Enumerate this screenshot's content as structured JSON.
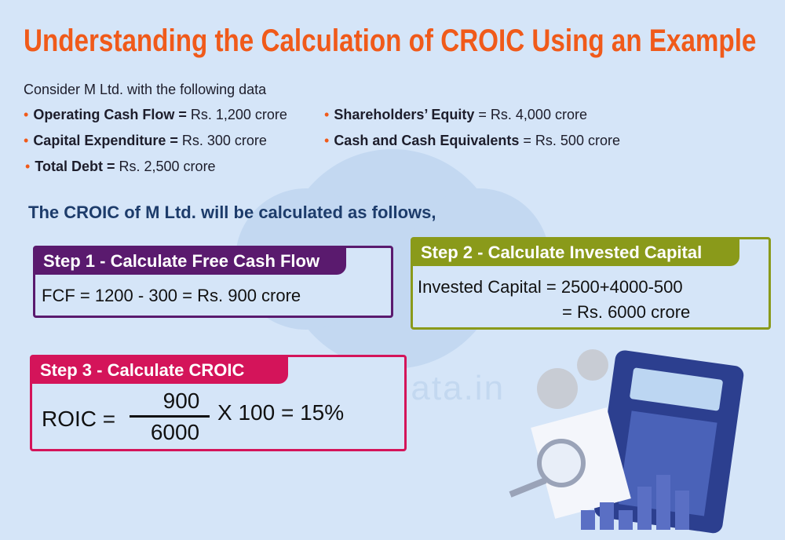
{
  "header": {
    "title": "Understanding the Calculation of CROIC Using an Example"
  },
  "intro": "Consider M Ltd. with the following data",
  "items": [
    {
      "label": "Operating Cash Flow =",
      "value": "Rs. 1,200 crore"
    },
    {
      "label": "Capital Expenditure =",
      "value": "Rs. 300 crore"
    },
    {
      "label": "Total Debt =",
      "value": "Rs. 2,500 crore"
    },
    {
      "label": "Shareholders’ Equity",
      "value": "= Rs. 4,000 crore"
    },
    {
      "label": "Cash and Cash Equivalents",
      "value": "= Rs. 500 crore"
    }
  ],
  "lead": "The CROIC of M Ltd. will be calculated as follows,",
  "step1": {
    "title": "Step 1 - Calculate Free Cash Flow",
    "formula": "FCF = 1200 - 300 = Rs. 900 crore"
  },
  "step2": {
    "title": "Step 2 - Calculate Invested Capital",
    "line1": "Invested Capital = 2500+4000-500",
    "line2": "= Rs. 6000 crore"
  },
  "step3": {
    "title": "Step 3 - Calculate CROIC",
    "lhs": "ROIC =",
    "numerator": "900",
    "denominator": "6000",
    "rhs": "X 100 = 15%"
  },
  "watermark": "www.truedata.in"
}
